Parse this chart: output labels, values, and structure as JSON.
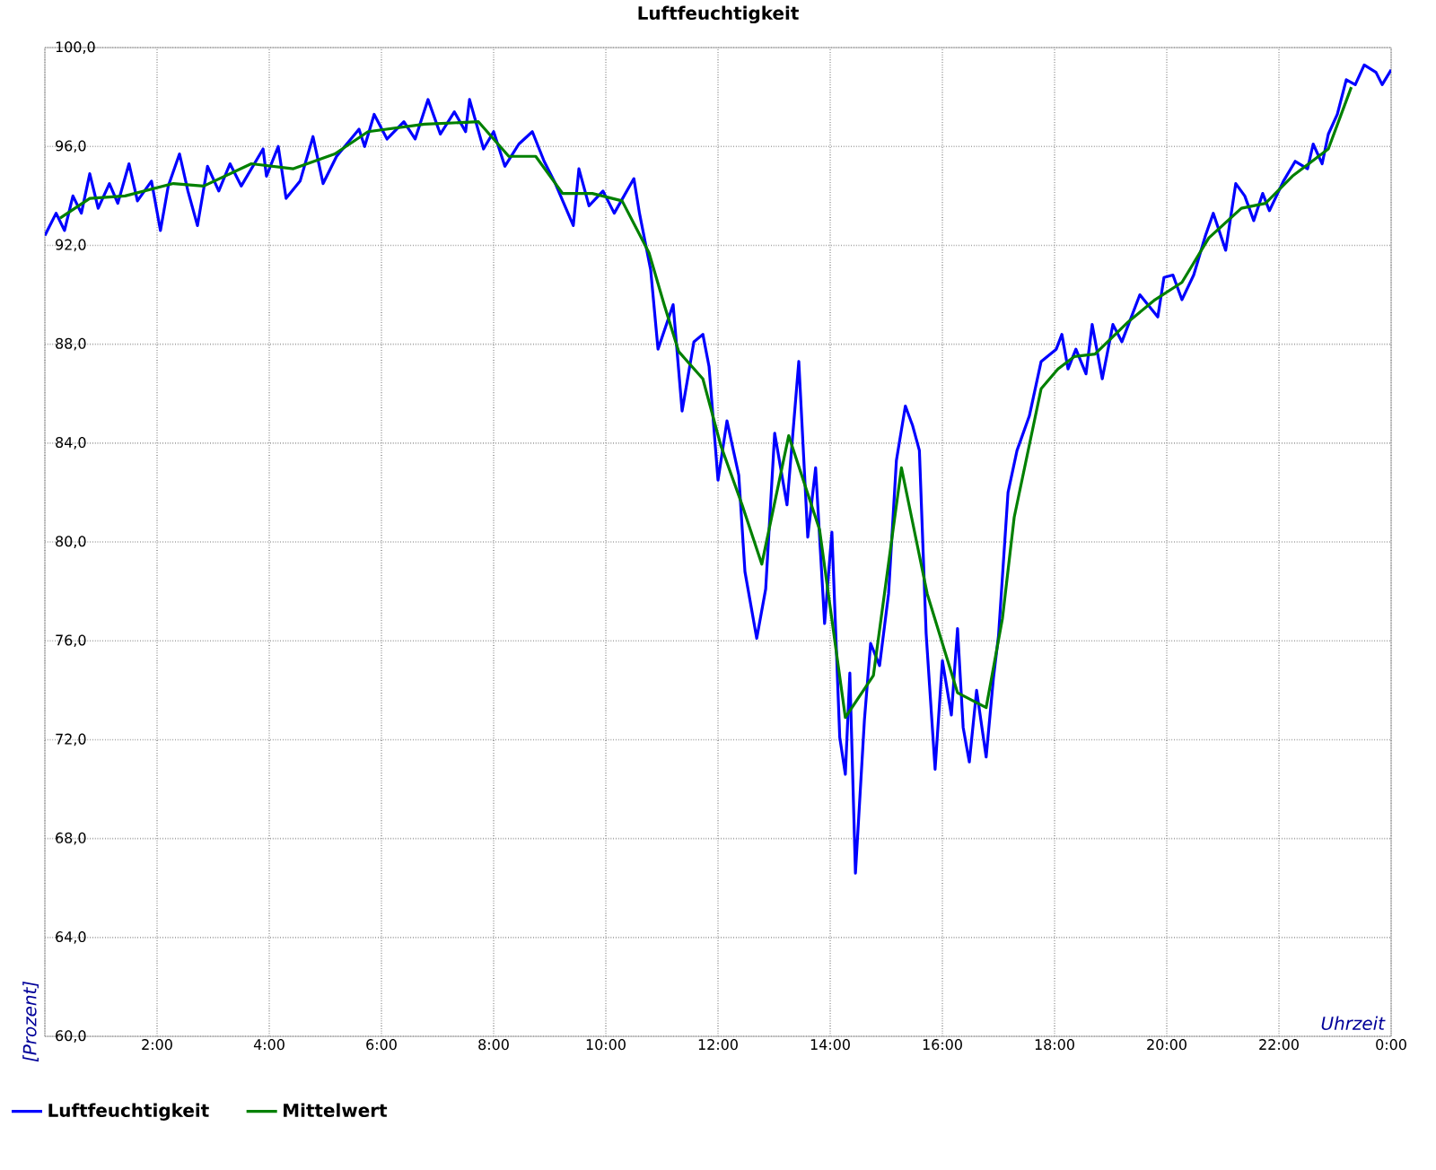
{
  "chart_data": {
    "type": "line",
    "title": "Luftfeuchtigkeit",
    "xlabel": "Uhrzeit",
    "ylabel": "[Prozent]",
    "xlim": [
      0,
      24
    ],
    "ylim": [
      60,
      100
    ],
    "xticks": [
      {
        "value": 0,
        "label": null
      },
      {
        "value": 2,
        "label": "2:00"
      },
      {
        "value": 4,
        "label": "4:00"
      },
      {
        "value": 6,
        "label": "6:00"
      },
      {
        "value": 8,
        "label": "8:00"
      },
      {
        "value": 10,
        "label": "10:00"
      },
      {
        "value": 12,
        "label": "12:00"
      },
      {
        "value": 14,
        "label": "14:00"
      },
      {
        "value": 16,
        "label": "16:00"
      },
      {
        "value": 18,
        "label": "18:00"
      },
      {
        "value": 20,
        "label": "20:00"
      },
      {
        "value": 22,
        "label": "22:00"
      },
      {
        "value": 24,
        "label": "0:00"
      }
    ],
    "yticks": [
      {
        "value": 60,
        "label": "60,0"
      },
      {
        "value": 64,
        "label": "64,0"
      },
      {
        "value": 68,
        "label": "68,0"
      },
      {
        "value": 72,
        "label": "72,0"
      },
      {
        "value": 76,
        "label": "76,0"
      },
      {
        "value": 80,
        "label": "80,0"
      },
      {
        "value": 84,
        "label": "84,0"
      },
      {
        "value": 88,
        "label": "88,0"
      },
      {
        "value": 92,
        "label": "92,0"
      },
      {
        "value": 96,
        "label": "96,0"
      },
      {
        "value": 100,
        "label": "100,0"
      }
    ],
    "grid": true,
    "legend": "bottom left",
    "marker": "none",
    "line_style": "solid",
    "series": [
      {
        "name": "Luftfeuchtigkeit",
        "color": "#0000ff",
        "x": [
          0.0,
          0.2,
          0.35,
          0.5,
          0.65,
          0.8,
          0.95,
          1.15,
          1.3,
          1.5,
          1.65,
          1.9,
          2.06,
          2.2,
          2.4,
          2.55,
          2.72,
          2.9,
          3.1,
          3.3,
          3.5,
          3.89,
          3.95,
          4.16,
          4.3,
          4.55,
          4.78,
          4.96,
          5.2,
          5.6,
          5.7,
          5.87,
          6.1,
          6.4,
          6.6,
          6.83,
          7.05,
          7.3,
          7.5,
          7.57,
          7.82,
          8.0,
          8.2,
          8.45,
          8.69,
          8.9,
          9.1,
          9.42,
          9.52,
          9.7,
          9.95,
          10.15,
          10.5,
          10.6,
          10.8,
          10.93,
          11.2,
          11.36,
          11.57,
          11.73,
          11.84,
          12.0,
          12.16,
          12.37,
          12.48,
          12.69,
          12.85,
          13.01,
          13.23,
          13.44,
          13.6,
          13.74,
          13.9,
          14.03,
          14.17,
          14.27,
          14.35,
          14.45,
          14.61,
          14.72,
          14.88,
          15.04,
          15.18,
          15.34,
          15.47,
          15.59,
          15.71,
          15.87,
          16.0,
          16.16,
          16.27,
          16.37,
          16.48,
          16.61,
          16.78,
          16.91,
          17.0,
          17.17,
          17.33,
          17.55,
          17.76,
          18.03,
          18.13,
          18.24,
          18.38,
          18.56,
          18.67,
          18.85,
          19.04,
          19.2,
          19.52,
          19.84,
          19.95,
          20.11,
          20.27,
          20.48,
          20.69,
          20.83,
          21.05,
          21.23,
          21.39,
          21.55,
          21.71,
          21.83,
          22.08,
          22.29,
          22.51,
          22.61,
          22.77,
          22.88,
          23.04,
          23.2,
          23.36,
          23.52,
          23.73,
          23.84,
          24.0
        ],
        "values": [
          92.4,
          93.3,
          92.6,
          94.0,
          93.3,
          94.9,
          93.5,
          94.5,
          93.7,
          95.3,
          93.8,
          94.6,
          92.6,
          94.4,
          95.7,
          94.2,
          92.8,
          95.2,
          94.2,
          95.3,
          94.4,
          95.9,
          94.8,
          96.0,
          93.9,
          94.6,
          96.4,
          94.5,
          95.6,
          96.7,
          96.0,
          97.3,
          96.3,
          97.0,
          96.3,
          97.9,
          96.5,
          97.4,
          96.6,
          97.9,
          95.9,
          96.6,
          95.2,
          96.1,
          96.6,
          95.4,
          94.5,
          92.8,
          95.1,
          93.6,
          94.2,
          93.3,
          94.7,
          93.3,
          91.0,
          87.8,
          89.6,
          85.3,
          88.1,
          88.4,
          87.1,
          82.5,
          84.9,
          82.7,
          78.8,
          76.1,
          78.1,
          84.4,
          81.5,
          87.3,
          80.2,
          83.0,
          76.7,
          80.4,
          72.1,
          70.6,
          74.7,
          66.6,
          72.8,
          75.9,
          75.0,
          77.9,
          83.3,
          85.5,
          84.7,
          83.7,
          76.3,
          70.8,
          75.2,
          73.0,
          76.5,
          72.5,
          71.1,
          74.0,
          71.3,
          74.5,
          76.2,
          82.0,
          83.7,
          85.1,
          87.3,
          87.8,
          88.4,
          87.0,
          87.8,
          86.8,
          88.8,
          86.6,
          88.8,
          88.1,
          90.0,
          89.1,
          90.7,
          90.8,
          89.8,
          90.8,
          92.4,
          93.3,
          91.8,
          94.5,
          94.0,
          93.0,
          94.1,
          93.4,
          94.6,
          95.4,
          95.1,
          96.1,
          95.3,
          96.5,
          97.3,
          98.7,
          98.5,
          99.3,
          99.0,
          98.5,
          99.1
        ]
      },
      {
        "name": "Mittelwert",
        "color": "#008000",
        "x": [
          0.27,
          0.8,
          1.43,
          2.29,
          2.83,
          3.68,
          4.43,
          5.17,
          5.76,
          6.77,
          7.73,
          8.27,
          8.75,
          9.23,
          9.76,
          10.29,
          10.77,
          11.04,
          11.3,
          11.73,
          12.05,
          12.43,
          12.78,
          13.26,
          13.81,
          14.27,
          14.77,
          15.27,
          15.73,
          16.27,
          16.78,
          17.07,
          17.28,
          17.76,
          18.06,
          18.35,
          18.72,
          19.31,
          19.79,
          20.27,
          20.75,
          21.33,
          21.76,
          22.24,
          22.88,
          23.29
        ],
        "values": [
          93.1,
          93.9,
          94.0,
          94.5,
          94.4,
          95.3,
          95.1,
          95.7,
          96.6,
          96.9,
          97.0,
          95.6,
          95.6,
          94.1,
          94.1,
          93.8,
          91.7,
          89.6,
          87.7,
          86.6,
          83.9,
          81.5,
          79.1,
          84.3,
          80.5,
          72.9,
          74.6,
          83.0,
          77.9,
          73.9,
          73.3,
          76.9,
          81.0,
          86.2,
          87.0,
          87.5,
          87.6,
          88.9,
          89.8,
          90.5,
          92.3,
          93.5,
          93.7,
          94.8,
          95.9,
          98.4
        ]
      }
    ]
  }
}
